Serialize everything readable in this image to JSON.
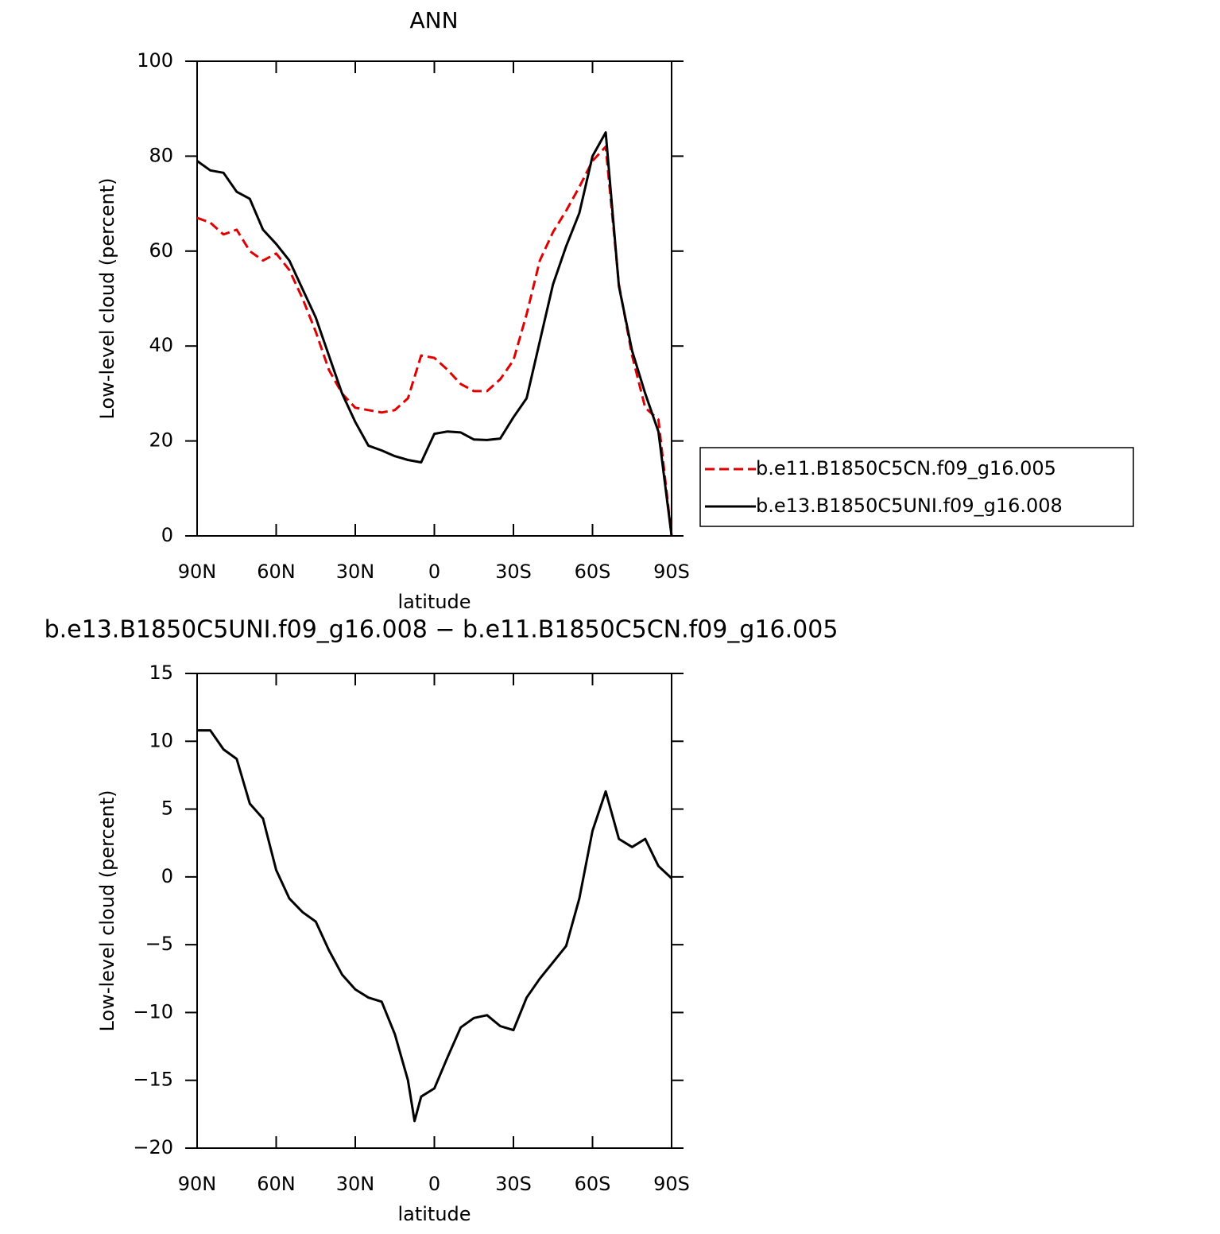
{
  "chart_data": [
    {
      "type": "line",
      "title": "ANN",
      "xlabel": "latitude",
      "ylabel": "Low-level cloud (percent)",
      "x": [
        90,
        85,
        80,
        75,
        70,
        65,
        60,
        55,
        50,
        45,
        40,
        35,
        30,
        25,
        20,
        15,
        10,
        5,
        0,
        -5,
        -10,
        -15,
        -20,
        -25,
        -30,
        -35,
        -40,
        -45,
        -50,
        -55,
        -60,
        -65,
        -70,
        -75,
        -80,
        -85,
        -90
      ],
      "series": [
        {
          "name": "b.e11.B1850C5CN.f09_g16.005",
          "color": "#e00000",
          "dashed": true,
          "values": [
            67,
            66,
            63.5,
            64.5,
            60,
            58,
            59.5,
            56,
            50,
            43,
            35,
            30,
            27,
            26.5,
            26,
            26.5,
            29,
            38,
            37.5,
            35,
            32,
            30.5,
            30.5,
            33,
            37,
            46.7,
            58,
            64,
            68.5,
            73.5,
            79,
            82,
            53,
            38,
            27,
            24.5,
            0
          ]
        },
        {
          "name": "b.e13.B1850C5UNI.f09_g16.008",
          "color": "#000000",
          "dashed": false,
          "values": [
            79,
            77,
            76.5,
            72.5,
            71,
            64.5,
            61.5,
            58,
            52,
            46,
            38,
            30,
            24,
            19,
            18,
            16.8,
            16,
            15.5,
            21.5,
            22,
            21.8,
            20.3,
            20.2,
            20.5,
            25,
            29,
            41,
            53,
            61,
            68,
            80,
            85,
            52.6,
            39,
            30,
            22,
            0
          ]
        }
      ],
      "xlim": [
        90,
        -90
      ],
      "xticks": [
        {
          "value": 90,
          "label": "90N"
        },
        {
          "value": 60,
          "label": "60N"
        },
        {
          "value": 30,
          "label": "30N"
        },
        0,
        {
          "value": -30,
          "label": "30S"
        },
        {
          "value": -60,
          "label": "60S"
        },
        {
          "value": -90,
          "label": "90S"
        }
      ],
      "ylim": [
        0,
        100
      ],
      "yticks": [
        0,
        20,
        40,
        60,
        80,
        100
      ],
      "legend": "outside-right"
    },
    {
      "type": "line",
      "title": "b.e13.B1850C5UNI.f09_g16.008 − b.e11.B1850C5CN.f09_g16.005",
      "xlabel": "latitude",
      "ylabel": "Low-level cloud (percent)",
      "x": [
        90,
        85,
        80,
        75,
        70,
        65,
        60,
        55,
        50,
        45,
        40,
        35,
        30,
        25,
        20,
        15,
        10,
        7.5,
        5,
        0,
        -5,
        -10,
        -15,
        -20,
        -25,
        -30,
        -35,
        -40,
        -45,
        -50,
        -55,
        -60,
        -65,
        -70,
        -75,
        -80,
        -85,
        -90
      ],
      "values": [
        10.8,
        10.8,
        9.4,
        8.7,
        5.4,
        4.3,
        0.5,
        -1.6,
        -2.6,
        -3.3,
        -5.4,
        -7.2,
        -8.3,
        -8.9,
        -9.2,
        -11.6,
        -15,
        -18,
        -16.2,
        -15.6,
        -13.3,
        -11.1,
        -10.4,
        -10.2,
        -11,
        -11.3,
        -8.9,
        -7.5,
        -6.3,
        -5.1,
        -1.6,
        3.4,
        6.3,
        2.8,
        2.2,
        2.8,
        0.8,
        -0.1
      ],
      "color": "#000000",
      "xlim": [
        90,
        -90
      ],
      "xticks": [
        {
          "value": 90,
          "label": "90N"
        },
        {
          "value": 60,
          "label": "60N"
        },
        {
          "value": 30,
          "label": "30N"
        },
        0,
        {
          "value": -30,
          "label": "30S"
        },
        {
          "value": -60,
          "label": "60S"
        },
        {
          "value": -90,
          "label": "90S"
        }
      ],
      "ylim": [
        -20,
        15
      ],
      "yticks": [
        {
          "value": -20,
          "label": "−20"
        },
        {
          "value": -15,
          "label": "−15"
        },
        {
          "value": -10,
          "label": "−10"
        },
        {
          "value": -5,
          "label": "−5"
        },
        0,
        5,
        10,
        15
      ]
    }
  ]
}
